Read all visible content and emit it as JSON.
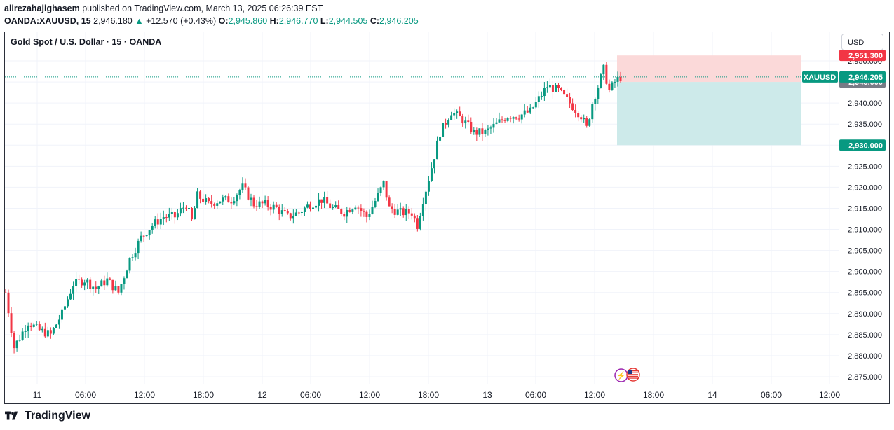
{
  "header": {
    "author": "alirezahajighasem",
    "published_text": "published on TradingView.com, March 13, 2025 06:26:39 EST",
    "symbol": "OANDA:XAUUSD, 15",
    "last": "2,946.180",
    "change_arrow": "▲",
    "change": "+12.570 (+0.43%)",
    "o_label": "O:",
    "o_value": "2,945.860",
    "h_label": "H:",
    "h_value": "2,946.770",
    "l_label": "L:",
    "l_value": "2,944.505",
    "c_label": "C:",
    "c_value": "2,946.205"
  },
  "chart_title": "Gold Spot / U.S. Dollar · 15 · OANDA",
  "currency_button": "USD",
  "footer_brand": "TradingView",
  "colors": {
    "up": "#089981",
    "down": "#f23645",
    "stop_zone": "#fbd9d9",
    "target_zone": "#cdeaea",
    "grid": "#f0f3fa"
  },
  "chart_data": {
    "type": "candlestick",
    "title": "Gold Spot / U.S. Dollar · 15 · OANDA",
    "ylim": [
      2872,
      2954
    ],
    "y_ticks": [
      2875,
      2880,
      2885,
      2890,
      2895,
      2900,
      2905,
      2910,
      2915,
      2920,
      2925,
      2930,
      2935,
      2940,
      2945,
      2950
    ],
    "y_tick_labels": [
      "2,875.000",
      "2,880.000",
      "2,885.000",
      "2,890.000",
      "2,895.000",
      "2,900.000",
      "2,905.000",
      "2,910.000",
      "2,915.000",
      "2,920.000",
      "2,925.000",
      "2,930.000",
      "2,935.000",
      "2,940.000",
      "2,945.000",
      "2,950.000"
    ],
    "x_tick_labels": [
      "11",
      "06:00",
      "12:00",
      "18:00",
      "12",
      "06:00",
      "12:00",
      "18:00",
      "13",
      "06:00",
      "12:00",
      "18:00",
      "14",
      "06:00",
      "12:00"
    ],
    "price_path": [
      [
        0,
        2895
      ],
      [
        3,
        2882
      ],
      [
        8,
        2888
      ],
      [
        12,
        2886
      ],
      [
        16,
        2885
      ],
      [
        20,
        2890
      ],
      [
        24,
        2897
      ],
      [
        28,
        2898
      ],
      [
        32,
        2896
      ],
      [
        36,
        2898
      ],
      [
        40,
        2895
      ],
      [
        44,
        2903
      ],
      [
        48,
        2908
      ],
      [
        52,
        2911
      ],
      [
        56,
        2913
      ],
      [
        60,
        2913
      ],
      [
        64,
        2916
      ],
      [
        66,
        2912
      ],
      [
        68,
        2918
      ],
      [
        72,
        2916
      ],
      [
        76,
        2917
      ],
      [
        80,
        2917
      ],
      [
        84,
        2920
      ],
      [
        88,
        2916
      ],
      [
        92,
        2916
      ],
      [
        96,
        2915
      ],
      [
        100,
        2913
      ],
      [
        104,
        2914
      ],
      [
        108,
        2916
      ],
      [
        112,
        2917
      ],
      [
        116,
        2915
      ],
      [
        120,
        2914
      ],
      [
        124,
        2916
      ],
      [
        128,
        2913
      ],
      [
        132,
        2918
      ],
      [
        134,
        2921
      ],
      [
        136,
        2915
      ],
      [
        140,
        2914
      ],
      [
        144,
        2914
      ],
      [
        146,
        2911
      ],
      [
        148,
        2917
      ],
      [
        150,
        2922
      ],
      [
        154,
        2933
      ],
      [
        158,
        2938
      ],
      [
        162,
        2936
      ],
      [
        166,
        2933
      ],
      [
        170,
        2933
      ],
      [
        174,
        2935
      ],
      [
        178,
        2937
      ],
      [
        182,
        2937
      ],
      [
        186,
        2938
      ],
      [
        190,
        2942
      ],
      [
        192,
        2944
      ],
      [
        196,
        2943
      ],
      [
        200,
        2940
      ],
      [
        204,
        2937
      ],
      [
        206,
        2934
      ],
      [
        208,
        2940
      ],
      [
        210,
        2944
      ],
      [
        212,
        2948
      ],
      [
        214,
        2943
      ],
      [
        216,
        2945
      ],
      [
        218,
        2946.2
      ]
    ],
    "last_price": 2946.205,
    "last_price_label": "2,946.205",
    "symbol_tag": "XAUUSD",
    "position": {
      "type": "short",
      "stop": 2951.3,
      "stop_label": "2,951.300",
      "entry": 2945.0,
      "entry_label": "2,945.000",
      "target": 2930.0,
      "target_label": "2,930.000"
    },
    "grid": true
  }
}
